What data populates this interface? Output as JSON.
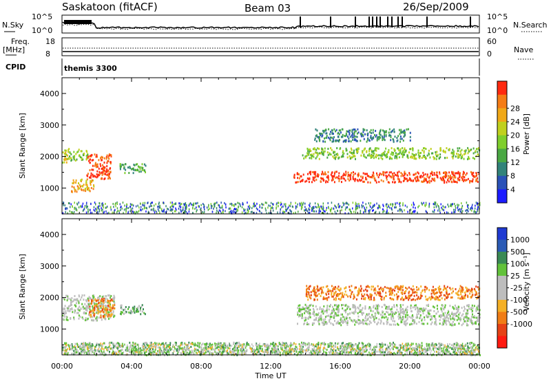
{
  "header": {
    "station": "Saskatoon (fitACF)",
    "beam": "Beam 03",
    "date": "26/Sep/2009"
  },
  "top_panels": {
    "noise": {
      "left_label": "N.Sky",
      "right_label": "N.Search",
      "left_ticks": [
        "10^5",
        "10^0"
      ],
      "right_ticks": [
        "10^5",
        "10^0"
      ]
    },
    "freq": {
      "left_label_1": "Freq.",
      "left_label_2": "[MHz]",
      "right_label": "Nave",
      "left_ticks": [
        "18",
        "8"
      ],
      "right_ticks": [
        "60",
        "0"
      ]
    },
    "cpid": {
      "label": "CPID",
      "program": "themis 3300"
    }
  },
  "colors": {
    "power_scale": [
      "#1c1cff",
      "#2a52b8",
      "#32837a",
      "#4aa843",
      "#7fce2c",
      "#c0d01e",
      "#f0a818",
      "#f57c16",
      "#ff2a10"
    ],
    "velocity_scale": [
      "#1f3ad2",
      "#2b5bb5",
      "#3a8a55",
      "#62c23a",
      "#bdbdbd",
      "#bdbdbd",
      "#f4b026",
      "#f07d16",
      "#e64216",
      "#ff1a10"
    ]
  },
  "chart_data": [
    {
      "type": "heatmap",
      "panel": "power",
      "xlabel": "",
      "ylabel": "Slant Range [km]",
      "x_ticks": [
        "00:00",
        "04:00",
        "08:00",
        "12:00",
        "16:00",
        "20:00",
        "00:00"
      ],
      "y_ticks": [
        "1000",
        "2000",
        "3000",
        "4000"
      ],
      "xlim": [
        0,
        24
      ],
      "ylim": [
        180,
        4500
      ],
      "colorbar": {
        "label": "Power [dB]",
        "ticks": [
          "4",
          "8",
          "12",
          "16",
          "20",
          "24",
          "28"
        ]
      },
      "regions": [
        {
          "t0": 0.0,
          "t1": 0.4,
          "r0": 1800,
          "r1": 2300,
          "level": 5
        },
        {
          "t0": 0.4,
          "t1": 1.5,
          "r0": 1900,
          "r1": 2250,
          "level": 4
        },
        {
          "t0": 1.4,
          "t1": 2.8,
          "r0": 1300,
          "r1": 2100,
          "level": 8
        },
        {
          "t0": 0.5,
          "t1": 1.8,
          "r0": 900,
          "r1": 1300,
          "level": 6
        },
        {
          "t0": 3.3,
          "t1": 4.8,
          "r0": 1500,
          "r1": 1800,
          "level": 3
        },
        {
          "t0": 13.3,
          "t1": 24.0,
          "r0": 1200,
          "r1": 1550,
          "level": 8
        },
        {
          "t0": 13.8,
          "t1": 24.0,
          "r0": 1950,
          "r1": 2300,
          "level": 4
        },
        {
          "t0": 14.5,
          "t1": 20.0,
          "r0": 2500,
          "r1": 2900,
          "level": 2
        }
      ]
    },
    {
      "type": "heatmap",
      "panel": "velocity",
      "xlabel": "Time UT",
      "ylabel": "Slant Range [km]",
      "x_ticks": [
        "00:00",
        "04:00",
        "08:00",
        "12:00",
        "16:00",
        "20:00",
        "00:00"
      ],
      "y_ticks": [
        "1000",
        "2000",
        "3000",
        "4000"
      ],
      "xlim": [
        0,
        24
      ],
      "ylim": [
        180,
        4500
      ],
      "colorbar": {
        "label": "Velocity [m s⁻¹]",
        "ticks": [
          "1000",
          "500",
          "100",
          "25",
          "-25",
          "-100",
          "-500",
          "-1000"
        ]
      },
      "regions": [
        {
          "t0": 0.0,
          "t1": 3.0,
          "r0": 1300,
          "r1": 2100,
          "level": 4
        },
        {
          "t0": 1.5,
          "t1": 3.0,
          "r0": 1400,
          "r1": 2000,
          "level": 7
        },
        {
          "t0": 3.3,
          "t1": 4.8,
          "r0": 1500,
          "r1": 1800,
          "level": 3
        },
        {
          "t0": 13.5,
          "t1": 24.0,
          "r0": 1150,
          "r1": 1800,
          "level": 4
        },
        {
          "t0": 14.0,
          "t1": 24.0,
          "r0": 1950,
          "r1": 2400,
          "level": 7
        },
        {
          "t0": 0.0,
          "t1": 24.0,
          "r0": 200,
          "r1": 600,
          "level": 3
        }
      ]
    }
  ]
}
